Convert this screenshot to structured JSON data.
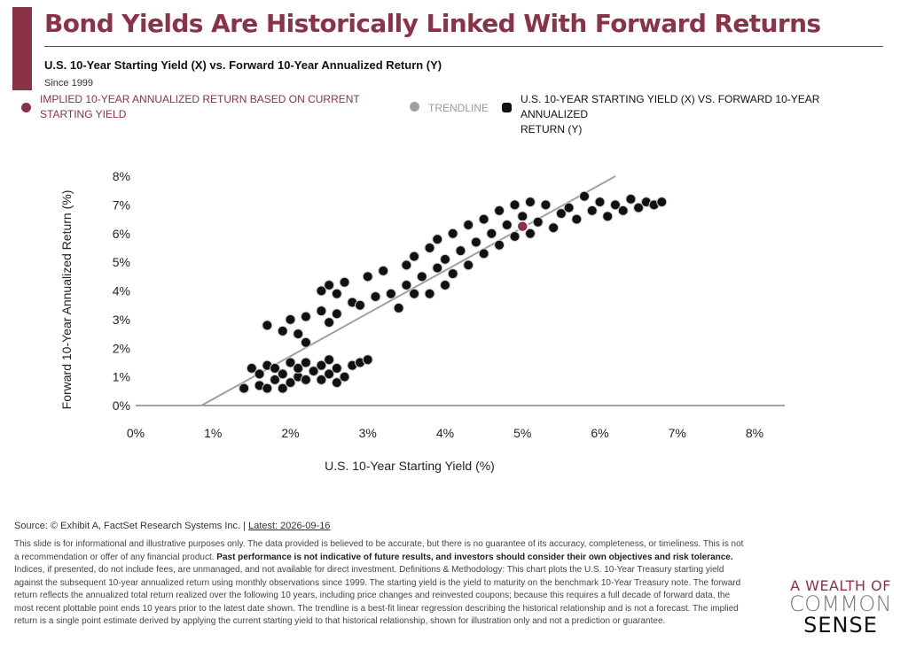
{
  "header": {
    "title": "Bond Yields Are Historically Linked With Forward Returns",
    "subtitle": "U.S. 10-Year Starting Yield (X) vs. Forward 10-Year Annualized Return (Y)",
    "since": "Since 1999"
  },
  "legend": [
    {
      "label": "IMPLIED 10-YEAR ANNUALIZED RETURN BASED ON CURRENT\nSTARTING YIELD",
      "color": "#8a3346",
      "icon": "implied-return-marker"
    },
    {
      "label": "TRENDLINE",
      "color": "#a0a0a0",
      "icon": "trendline-marker"
    },
    {
      "label": "U.S. 10-YEAR STARTING YIELD (X) VS. FORWARD 10-YEAR ANNUALIZED\nRETURN (Y)",
      "color": "#111111",
      "icon": "scatter-marker"
    }
  ],
  "chart_data": {
    "type": "scatter",
    "xlabel": "U.S. 10-Year Starting Yield (%)",
    "ylabel": "Forward 10-Year Annualized Return (%)",
    "xlim": [
      0,
      8
    ],
    "ylim": [
      0,
      8
    ],
    "x_ticks": [
      "0%",
      "1%",
      "2%",
      "3%",
      "4%",
      "5%",
      "6%",
      "7%",
      "8%"
    ],
    "y_ticks": [
      "0%",
      "1%",
      "2%",
      "3%",
      "4%",
      "5%",
      "6%",
      "7%",
      "8%"
    ],
    "grid": false,
    "point_color": "#111111",
    "implied_point": {
      "x": 5.0,
      "y": 6.25,
      "color": "#8a3346"
    },
    "trendline": {
      "x": [
        0.85,
        6.2
      ],
      "y": [
        0,
        8.0
      ],
      "color": "#a0a0a0"
    },
    "series": [
      {
        "points": [
          [
            1.4,
            0.6
          ],
          [
            1.5,
            1.3
          ],
          [
            1.6,
            0.7
          ],
          [
            1.6,
            1.1
          ],
          [
            1.7,
            0.6
          ],
          [
            1.7,
            1.4
          ],
          [
            1.8,
            0.9
          ],
          [
            1.8,
            1.3
          ],
          [
            1.9,
            0.6
          ],
          [
            1.9,
            1.1
          ],
          [
            2.0,
            0.8
          ],
          [
            2.0,
            1.5
          ],
          [
            2.1,
            1.0
          ],
          [
            2.1,
            1.3
          ],
          [
            2.2,
            0.9
          ],
          [
            2.2,
            1.5
          ],
          [
            2.3,
            1.2
          ],
          [
            2.4,
            0.9
          ],
          [
            2.4,
            1.4
          ],
          [
            2.5,
            1.1
          ],
          [
            2.5,
            1.6
          ],
          [
            2.6,
            0.8
          ],
          [
            2.6,
            1.3
          ],
          [
            2.7,
            1.0
          ],
          [
            2.8,
            1.4
          ],
          [
            2.9,
            1.5
          ],
          [
            3.0,
            1.6
          ],
          [
            1.7,
            2.8
          ],
          [
            1.9,
            2.6
          ],
          [
            2.0,
            3.0
          ],
          [
            2.1,
            2.5
          ],
          [
            2.2,
            3.1
          ],
          [
            2.2,
            2.2
          ],
          [
            2.4,
            3.3
          ],
          [
            2.5,
            2.9
          ],
          [
            2.6,
            3.2
          ],
          [
            2.4,
            4.0
          ],
          [
            2.5,
            4.2
          ],
          [
            2.6,
            3.9
          ],
          [
            2.7,
            4.3
          ],
          [
            2.8,
            3.6
          ],
          [
            2.9,
            3.5
          ],
          [
            3.0,
            4.5
          ],
          [
            3.1,
            3.8
          ],
          [
            3.2,
            4.7
          ],
          [
            3.3,
            3.9
          ],
          [
            3.4,
            3.4
          ],
          [
            3.5,
            4.9
          ],
          [
            3.5,
            4.2
          ],
          [
            3.6,
            3.9
          ],
          [
            3.6,
            5.2
          ],
          [
            3.7,
            4.5
          ],
          [
            3.8,
            5.5
          ],
          [
            3.8,
            3.9
          ],
          [
            3.9,
            4.8
          ],
          [
            3.9,
            5.8
          ],
          [
            4.0,
            4.2
          ],
          [
            4.0,
            5.1
          ],
          [
            4.1,
            6.0
          ],
          [
            4.1,
            4.6
          ],
          [
            4.2,
            5.4
          ],
          [
            4.3,
            6.3
          ],
          [
            4.3,
            4.9
          ],
          [
            4.4,
            5.7
          ],
          [
            4.5,
            6.5
          ],
          [
            4.5,
            5.3
          ],
          [
            4.6,
            6.0
          ],
          [
            4.7,
            6.8
          ],
          [
            4.7,
            5.6
          ],
          [
            4.8,
            6.3
          ],
          [
            4.9,
            7.0
          ],
          [
            4.9,
            5.9
          ],
          [
            5.0,
            6.6
          ],
          [
            5.1,
            7.1
          ],
          [
            5.1,
            6.0
          ],
          [
            5.2,
            6.4
          ],
          [
            5.3,
            7.0
          ],
          [
            5.4,
            6.2
          ],
          [
            5.5,
            6.7
          ],
          [
            5.6,
            6.9
          ],
          [
            5.7,
            6.5
          ],
          [
            5.8,
            7.3
          ],
          [
            5.9,
            6.8
          ],
          [
            6.0,
            7.1
          ],
          [
            6.1,
            6.6
          ],
          [
            6.2,
            7.0
          ],
          [
            6.3,
            6.8
          ],
          [
            6.4,
            7.2
          ],
          [
            6.5,
            6.9
          ],
          [
            6.6,
            7.1
          ],
          [
            6.7,
            7.0
          ],
          [
            6.8,
            7.1
          ]
        ]
      }
    ]
  },
  "footer": {
    "source": "Source: © Exhibit A, FactSet Research Systems Inc. | ",
    "latest": "Latest: 2026-09-16",
    "disclaimer_1": "This slide is for informational and illustrative purposes only. The data provided is believed to be accurate, but there is no guarantee of its accuracy, completeness, or timeliness. This is not a recommendation or offer of any financial product. ",
    "disclaimer_bold": "Past performance is not indicative of future results, and investors should consider their own objectives and risk tolerance.",
    "disclaimer_2": " Indices, if presented, do not include fees, are unmanaged, and not available for direct investment. Definitions & Methodology: This chart plots the U.S. 10-Year Treasury starting yield against the subsequent 10-year annualized return using monthly observations since 1999. The starting yield is the yield to maturity on the benchmark 10-Year Treasury note. The forward return reflects the annualized total return realized over the following 10 years, including price changes and reinvested coupons; because this requires a full decade of forward data, the most recent plottable point ends 10 years prior to the latest date shown. The trendline is a best-fit linear regression describing the historical relationship and is not a forecast. The implied return is a single point estimate derived by applying the current starting yield to that historical relationship, shown for illustration only and not a prediction or guarantee."
  },
  "logo": {
    "line1": "A WEALTH OF",
    "line2": "COMMON",
    "line3": "SENSE"
  }
}
